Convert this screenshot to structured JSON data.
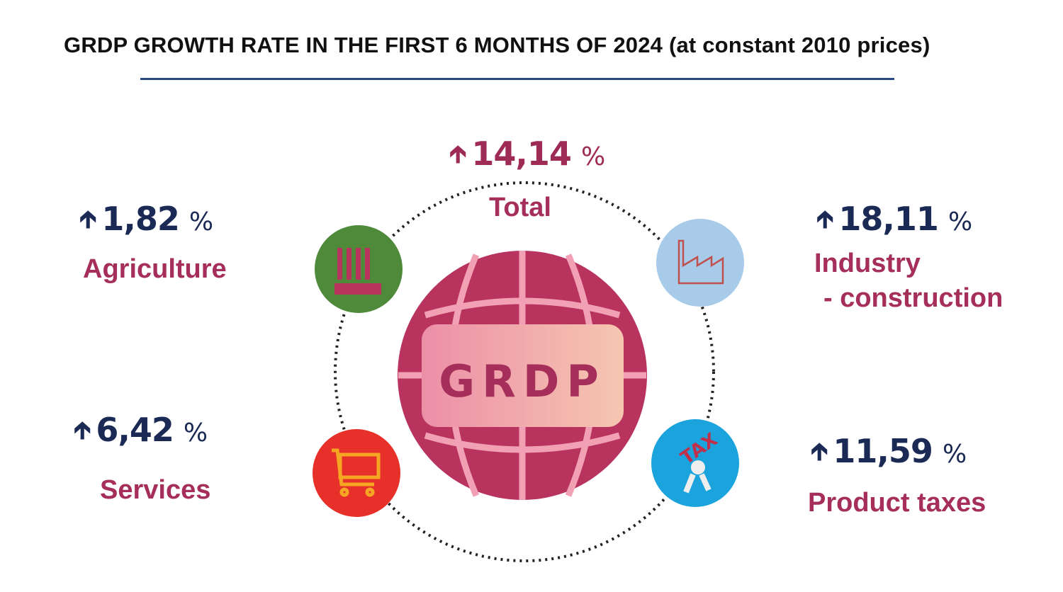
{
  "title": "GRDP GROWTH RATE IN THE FIRST 6 MONTHS OF 2024 (at constant 2010 prices)",
  "center_label": "GRDP",
  "percent_sign": "%",
  "items": {
    "total": {
      "value": "14,14",
      "label": "Total",
      "direction": "up"
    },
    "agriculture": {
      "value": "1,82",
      "label": "Agriculture",
      "direction": "up",
      "icon": "wheat-icon",
      "color": "#4f8a3a"
    },
    "industry": {
      "value": "18,11",
      "label_line1": "Industry",
      "label_line2": "- construction",
      "direction": "up",
      "icon": "factory-icon",
      "color": "#a9cbea"
    },
    "services": {
      "value": "6,42",
      "label": "Services",
      "direction": "up",
      "icon": "shopping-cart-icon",
      "color": "#e8302a"
    },
    "product_taxes": {
      "value": "11,59",
      "label": "Product taxes",
      "direction": "up",
      "icon": "tax-icon",
      "color": "#1ba3de"
    }
  },
  "colors": {
    "value": "#1b2a55",
    "total_value": "#9e2b55",
    "label": "#a52f5a",
    "globe": "#b8345f",
    "rule": "#2a4a85"
  }
}
